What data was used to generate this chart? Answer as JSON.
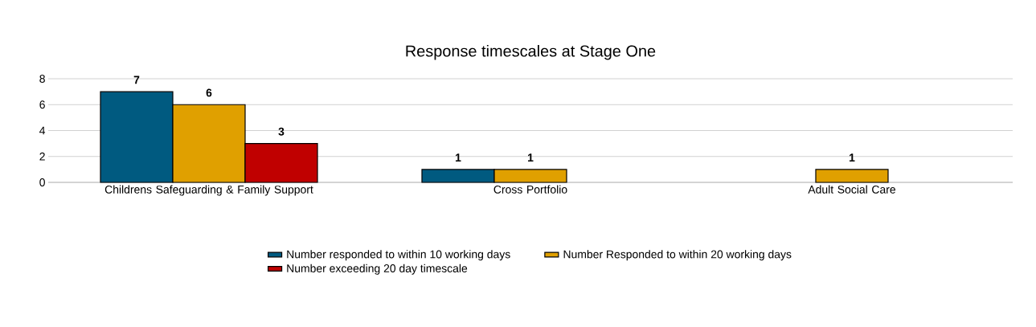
{
  "chart_data": {
    "type": "bar",
    "title": "Response timescales at Stage One",
    "categories": [
      "Childrens Safeguarding & Family Support",
      "Cross Portfolio",
      "Adult Social Care"
    ],
    "series": [
      {
        "name": "Number responded to within 10 working days",
        "color": "#005a80",
        "values": [
          7,
          1,
          null
        ]
      },
      {
        "name": "Number Responded to within 20 working days",
        "color": "#e0a000",
        "values": [
          6,
          1,
          1
        ]
      },
      {
        "name": "Number exceeding 20 day timescale",
        "color": "#c00000",
        "values": [
          3,
          null,
          null
        ]
      }
    ],
    "ylim": [
      0,
      8
    ],
    "yticks": [
      0,
      2,
      4,
      6,
      8
    ],
    "grid": "y",
    "legend": "bottom",
    "data_labels": true
  }
}
